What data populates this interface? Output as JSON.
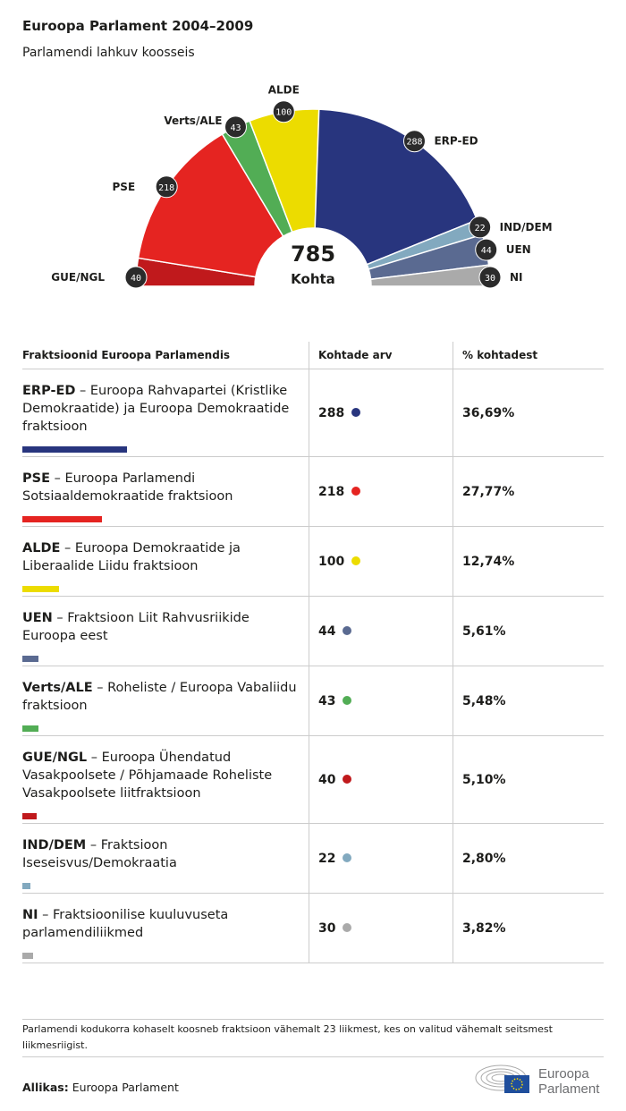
{
  "title": "Euroopa Parlament 2004–2009",
  "subtitle": "Parlamendi lahkuv koosseis",
  "chart_data": {
    "type": "pie",
    "variant": "parliament-semicircle",
    "center_value": "785",
    "center_label": "Kohta",
    "series": [
      {
        "name": "GUE/NGL",
        "value": 40,
        "color": "#c0191c"
      },
      {
        "name": "PSE",
        "value": 218,
        "color": "#e52421"
      },
      {
        "name": "Verts/ALE",
        "value": 43,
        "color": "#52ad55"
      },
      {
        "name": "ALDE",
        "value": 100,
        "color": "#ecdc00"
      },
      {
        "name": "ERP-ED",
        "value": 288,
        "color": "#28357e"
      },
      {
        "name": "IND/DEM",
        "value": 22,
        "color": "#82a9bf"
      },
      {
        "name": "UEN",
        "value": 44,
        "color": "#5a6a91"
      },
      {
        "name": "NI",
        "value": 30,
        "color": "#aaaaaa"
      }
    ]
  },
  "table": {
    "headers": [
      "Fraktsioonid Euroopa Parlamendis",
      "Kohtade arv",
      "% kohtadest"
    ],
    "rows": [
      {
        "abbr": "ERP-ED",
        "name": " – Euroopa Rahvapartei (Kristlike Demokraatide) ja Euroopa Demokraatide fraktsioon",
        "seats": "288",
        "pct": "36,69%",
        "pct_value": 36.69,
        "color": "#28357e"
      },
      {
        "abbr": "PSE",
        "name": " – Euroopa Parlamendi Sotsiaaldemokraatide fraktsioon",
        "seats": "218",
        "pct": "27,77%",
        "pct_value": 27.77,
        "color": "#e52421"
      },
      {
        "abbr": "ALDE",
        "name": " – Euroopa Demokraatide ja Liberaalide Liidu fraktsioon",
        "seats": "100",
        "pct": "12,74%",
        "pct_value": 12.74,
        "color": "#ecdc00"
      },
      {
        "abbr": "UEN",
        "name": " – Fraktsioon Liit Rahvusriikide Euroopa eest",
        "seats": "44",
        "pct": "5,61%",
        "pct_value": 5.61,
        "color": "#5a6a91"
      },
      {
        "abbr": "Verts/ALE",
        "name": " – Roheliste / Euroopa Vabaliidu fraktsioon",
        "seats": "43",
        "pct": "5,48%",
        "pct_value": 5.48,
        "color": "#52ad55"
      },
      {
        "abbr": "GUE/NGL",
        "name": " – Euroopa Ühendatud Vasakpoolsete / Põhjamaade Roheliste Vasakpoolsete liitfraktsioon",
        "seats": "40",
        "pct": "5,10%",
        "pct_value": 5.1,
        "color": "#c0191c"
      },
      {
        "abbr": "IND/DEM",
        "name": " – Fraktsioon Iseseisvus/Demokraatia",
        "seats": "22",
        "pct": "2,80%",
        "pct_value": 2.8,
        "color": "#82a9bf"
      },
      {
        "abbr": "NI",
        "name": " – Fraktsioonilise kuuluvuseta parlamendiliikmed",
        "seats": "30",
        "pct": "3,82%",
        "pct_value": 3.82,
        "color": "#aaaaaa"
      }
    ]
  },
  "note": "Parlamendi kodukorra kohaselt koosneb fraktsioon vähemalt 23 liikmest, kes on valitud vähemalt seitsmest liikmesriigist.",
  "source_label": "Allikas:",
  "source": " Euroopa Parlament",
  "logo_text": [
    "Euroopa",
    "Parlament"
  ]
}
